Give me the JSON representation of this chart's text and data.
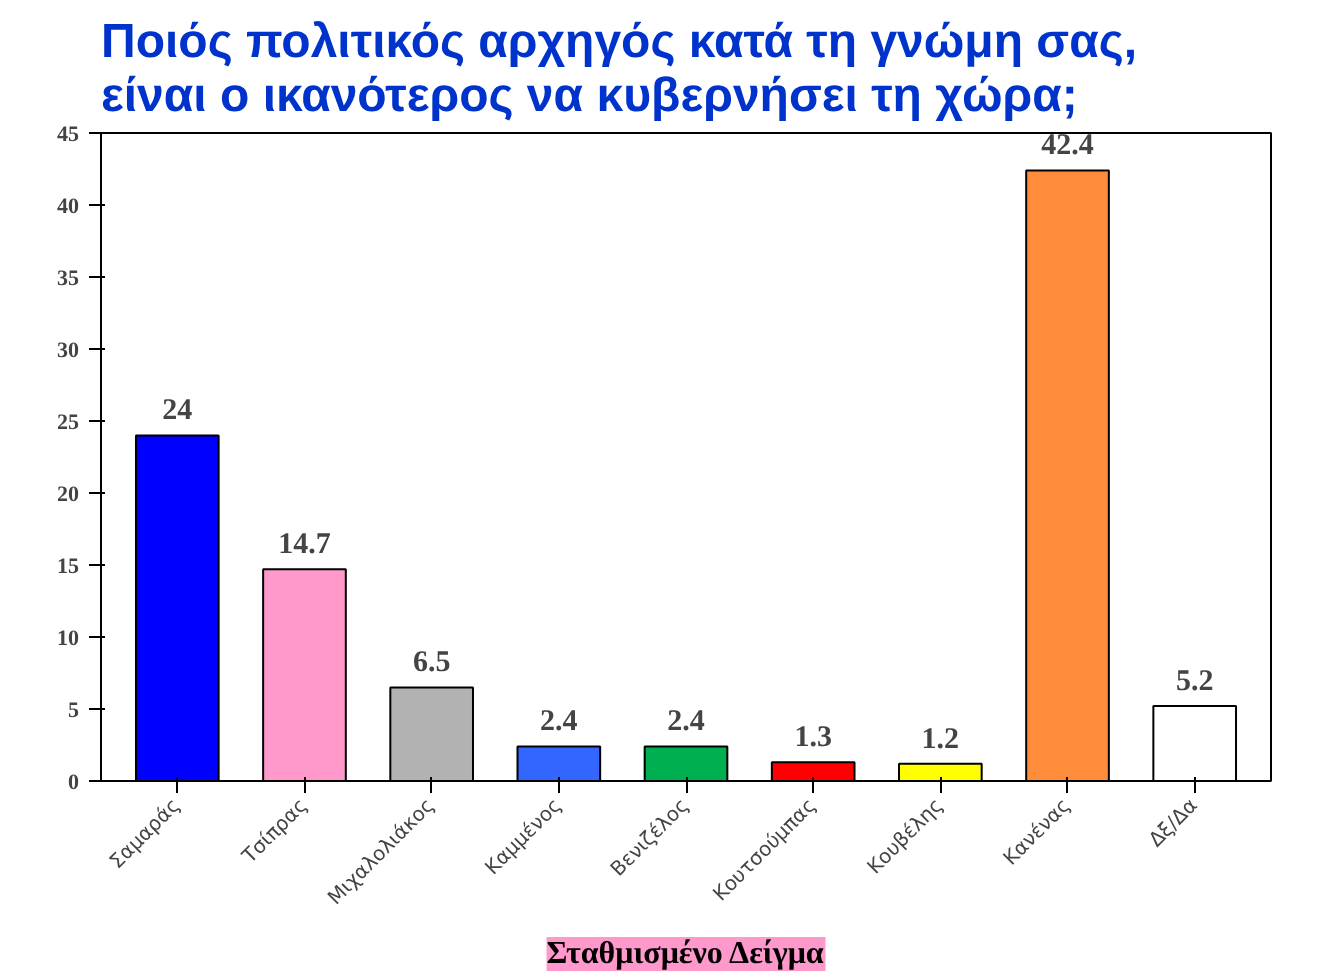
{
  "chart_data": {
    "type": "bar",
    "title": "Ποιός πολιτικός αρχηγός κατά τη γνώμη σας,\nείναι ο ικανότερος να κυβερνήσει τη χώρα;",
    "categories": [
      "Σαμαράς",
      "Τσίπρας",
      "Μιχαλολιάκος",
      "Καμμένος",
      "Βενιζέλος",
      "Κουτσούμπας",
      "Κουβέλης",
      "Κανένας",
      "Δξ/Δα"
    ],
    "values": [
      24,
      14.7,
      6.5,
      2.4,
      2.4,
      1.3,
      1.2,
      42.4,
      5.2
    ],
    "colors": [
      "#0000ff",
      "#ff99cc",
      "#b2b2b2",
      "#3366ff",
      "#00b050",
      "#ff0000",
      "#ffff00",
      "#ff8c3a",
      "#ffffff"
    ],
    "ylim": [
      0,
      45
    ],
    "yticks": [
      0,
      5,
      10,
      15,
      20,
      25,
      30,
      35,
      40,
      45
    ],
    "grid": false,
    "data_labels": true,
    "annotations": [
      "Σταθμισμένο Δείγμα"
    ]
  }
}
